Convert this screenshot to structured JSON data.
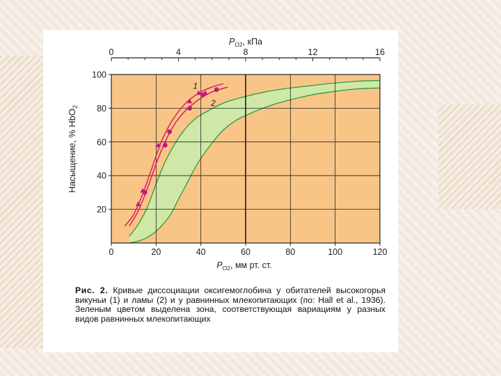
{
  "chart_data": {
    "type": "line",
    "top_axis_label": "P",
    "top_axis_subscript": "O2",
    "top_axis_unit": ", кПа",
    "top_axis_ticks": [
      "0",
      "4",
      "8",
      "12",
      "16"
    ],
    "bottom_axis_label": "P",
    "bottom_axis_subscript": "O2",
    "bottom_axis_unit": ", мм рт. ст.",
    "x_ticks": [
      "0",
      "20",
      "40",
      "60",
      "80",
      "100",
      "120"
    ],
    "ylabel": "Насыщение, % HbO",
    "ylabel_subscript": "2",
    "y_ticks": [
      "20",
      "40",
      "60",
      "80",
      "100"
    ],
    "xlim": [
      0,
      120
    ],
    "ylim": [
      0,
      100
    ],
    "grid": true,
    "colors": {
      "plot_background": "#f9c587",
      "grid": "#222222",
      "green_zone": "#cfe8a8",
      "green_edge": "#2e9a3e",
      "curve": "#d9285e",
      "points": "#c2187a"
    },
    "series": [
      {
        "name": "1",
        "marker": "triangle",
        "points": [
          [
            12,
            23
          ],
          [
            14,
            31
          ],
          [
            21,
            58
          ],
          [
            24,
            59
          ],
          [
            35,
            84
          ],
          [
            39,
            89
          ],
          [
            42,
            89
          ]
        ],
        "curve": [
          [
            6,
            10
          ],
          [
            10,
            17
          ],
          [
            14,
            29
          ],
          [
            18,
            44
          ],
          [
            22,
            59
          ],
          [
            26,
            70
          ],
          [
            30,
            78
          ],
          [
            34,
            84
          ],
          [
            38,
            88
          ],
          [
            42,
            91
          ],
          [
            46,
            93
          ],
          [
            50,
            94.5
          ]
        ]
      },
      {
        "name": "2",
        "marker": "circle",
        "points": [
          [
            15,
            30
          ],
          [
            24,
            58
          ],
          [
            26,
            66
          ],
          [
            35,
            80
          ],
          [
            41,
            88
          ],
          [
            47,
            91
          ]
        ],
        "curve": [
          [
            8,
            10
          ],
          [
            12,
            19
          ],
          [
            16,
            32
          ],
          [
            20,
            47
          ],
          [
            24,
            60
          ],
          [
            28,
            70
          ],
          [
            32,
            77
          ],
          [
            36,
            82
          ],
          [
            40,
            86
          ],
          [
            44,
            89
          ],
          [
            48,
            91
          ],
          [
            52,
            92.5
          ]
        ]
      }
    ],
    "green_zone": {
      "upper": [
        [
          8,
          4
        ],
        [
          12,
          11
        ],
        [
          16,
          21
        ],
        [
          20,
          35
        ],
        [
          24,
          48
        ],
        [
          28,
          58
        ],
        [
          32,
          66
        ],
        [
          36,
          72
        ],
        [
          40,
          76
        ],
        [
          50,
          83
        ],
        [
          60,
          87
        ],
        [
          70,
          90
        ],
        [
          80,
          92
        ],
        [
          90,
          93.5
        ],
        [
          100,
          95
        ],
        [
          110,
          96
        ],
        [
          120,
          96.5
        ]
      ],
      "lower": [
        [
          8,
          0
        ],
        [
          14,
          2
        ],
        [
          20,
          7
        ],
        [
          26,
          16
        ],
        [
          30,
          26
        ],
        [
          34,
          36
        ],
        [
          38,
          46
        ],
        [
          42,
          54
        ],
        [
          46,
          61
        ],
        [
          50,
          67
        ],
        [
          56,
          73
        ],
        [
          64,
          78
        ],
        [
          72,
          82
        ],
        [
          80,
          85
        ],
        [
          90,
          88
        ],
        [
          100,
          90
        ],
        [
          110,
          91.5
        ],
        [
          120,
          92
        ]
      ]
    },
    "annotations": [
      "1",
      "2"
    ]
  },
  "caption": {
    "figure_label": "Рис. 2.",
    "text": " Кривые диссоциации оксигемоглобина у обитателей высокогорья викуньи (1) и ламы (2) и у равнинных млекопитающих (по: Hall et al., 1936). Зеленым цветом выделена зона, соответствующая вариациям у разных видов равнинных млекопитающих"
  }
}
